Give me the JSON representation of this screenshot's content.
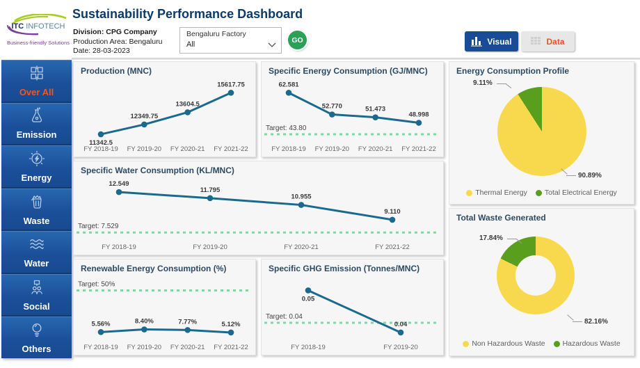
{
  "theme": {
    "accent_blue": "#1A4B96",
    "sidebar_blue": "#1B5099",
    "active_orange": "#F4551E",
    "line_color": "#1B6A8E",
    "target_color": "#7CD9A4",
    "go_green": "#2AA157",
    "data_orange": "#E2552B"
  },
  "header": {
    "title": "Sustainability Performance Dashboard",
    "logo": {
      "brand_itc": "ITC",
      "brand_rest": " INFOTECH",
      "tagline": "Business-friendly Solutions"
    },
    "info": {
      "division": "Division: CPG Company",
      "production_area": "Production Area: Bengaluru",
      "date": "Date: 28-03-2023"
    },
    "filter": {
      "label": "Bengaluru Factory",
      "value": "All"
    },
    "go_label": "GO",
    "toggle": {
      "visual": "Visual",
      "data": "Data"
    }
  },
  "sidebar": {
    "items": [
      {
        "label": "Over All",
        "icon": "overview-grid-icon",
        "active": true
      },
      {
        "label": "Emission",
        "icon": "flask-icon",
        "active": false
      },
      {
        "label": "Energy",
        "icon": "energy-gauge-icon",
        "active": false
      },
      {
        "label": "Waste",
        "icon": "trash-icon",
        "active": false
      },
      {
        "label": "Water",
        "icon": "waves-icon",
        "active": false
      },
      {
        "label": "Social",
        "icon": "people-icon",
        "active": false
      },
      {
        "label": "Others",
        "icon": "bulb-icon",
        "active": false
      }
    ]
  },
  "chart_data": [
    {
      "id": "production",
      "type": "line",
      "title": "Production (MNC)",
      "categories": [
        "FY 2018-19",
        "FY 2019-20",
        "FY 2020-21",
        "FY 2021-22"
      ],
      "values": [
        11342.5,
        12349.75,
        13604.5,
        15617.75
      ],
      "labels": [
        "11342.5",
        "12349.75",
        "13604.5",
        "15617.75"
      ],
      "label_below": [
        true,
        false,
        false,
        false
      ],
      "target": null,
      "pad": [
        38,
        34
      ],
      "grid": false
    },
    {
      "id": "specific_energy",
      "type": "line",
      "title": "Specific Energy Consumption (GJ/MNC)",
      "categories": [
        "FY 2018-19",
        "FY 2019-20",
        "FY 2020-21",
        "FY 2021-22"
      ],
      "values": [
        62.581,
        52.77,
        51.473,
        48.998
      ],
      "labels": [
        "62.581",
        "52.770",
        "51.473",
        "48.998"
      ],
      "label_below": [
        false,
        false,
        false,
        false
      ],
      "target": {
        "value": 43.8,
        "label": "Target: 43.80"
      },
      "pad": [
        38,
        34
      ],
      "grid": false
    },
    {
      "id": "specific_water",
      "type": "line",
      "title": "Specific Water Consumption (KL/MNC)",
      "categories": [
        "FY 2018-19",
        "FY 2019-20",
        "FY 2020-21",
        "FY 2021-22"
      ],
      "values": [
        12.549,
        11.795,
        10.955,
        9.11
      ],
      "labels": [
        "12.549",
        "11.795",
        "10.955",
        "9.110"
      ],
      "label_below": [
        false,
        false,
        false,
        false
      ],
      "target": {
        "value": 7.529,
        "label": "Target: 7.529"
      },
      "pad": [
        64,
        72
      ],
      "grid": false
    },
    {
      "id": "renewable_energy",
      "type": "line",
      "title": "Renewable Energy Consumption (%)",
      "categories": [
        "FY 2018-19",
        "FY 2019-20",
        "FY 2020-21",
        "FY 2021-22"
      ],
      "values": [
        5.56,
        8.4,
        7.77,
        5.12
      ],
      "labels": [
        "5.56%",
        "8.40%",
        "7.77%",
        "5.12%"
      ],
      "label_below": [
        false,
        false,
        false,
        false
      ],
      "target": {
        "value": 50,
        "label": "Target: 50%"
      },
      "pad": [
        38,
        34
      ],
      "grid": false
    },
    {
      "id": "specific_ghg",
      "type": "line",
      "title": "Specific GHG Emission (Tonnes/MNC)",
      "categories": [
        "FY 2018-19",
        "FY 2019-20"
      ],
      "values": [
        0.05,
        0.04
      ],
      "plot_values": [
        0.05,
        0.037
      ],
      "labels": [
        "0.05",
        "0.04"
      ],
      "label_below": [
        true,
        false
      ],
      "target": {
        "value": 0.04,
        "label": "Target: 0.04"
      },
      "pad": [
        66,
        60
      ],
      "grid": false
    },
    {
      "id": "energy_profile",
      "type": "pie",
      "title": "Energy Consumption Profile",
      "series": [
        {
          "name": "Thermal Energy",
          "value": 90.89,
          "label": "90.89%",
          "color": "#F8D94E"
        },
        {
          "name": "Total Electrical Energy",
          "value": 9.11,
          "label": "9.11%",
          "color": "#5A9E1E"
        }
      ],
      "legend_position": "bottom",
      "start_angle_deg": 0
    },
    {
      "id": "total_waste",
      "type": "pie",
      "title": "Total Waste Generated",
      "series": [
        {
          "name": "Non Hazardous Waste",
          "value": 82.16,
          "label": "82.16%",
          "color": "#F8D94E"
        },
        {
          "name": "Hazardous Waste",
          "value": 17.84,
          "label": "17.84%",
          "color": "#5A9E1E"
        }
      ],
      "legend_position": "bottom",
      "start_angle_deg": 0,
      "hole": "52%"
    }
  ]
}
